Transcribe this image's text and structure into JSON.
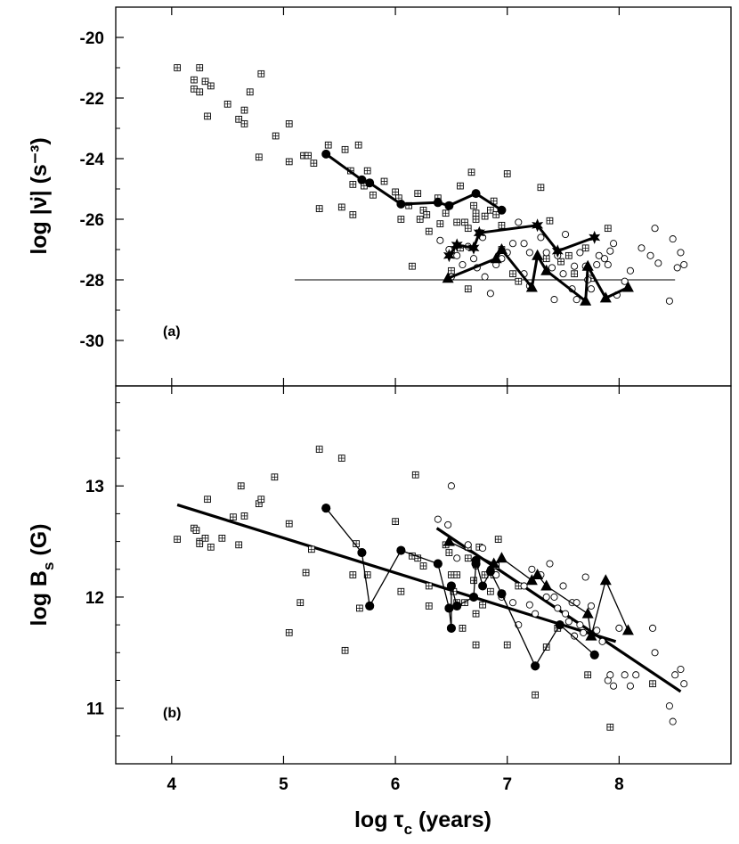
{
  "chart_data": [
    {
      "type": "scatter",
      "panel_label": "(a)",
      "ylabel": "log |ν̈| (s⁻³)",
      "xlim": [
        3.5,
        9.0
      ],
      "ylim": [
        -31.5,
        -19.0
      ],
      "yticks": [
        -30,
        -28,
        -26,
        -24,
        -22,
        -20
      ],
      "ytick_labels": [
        "-30",
        "-28",
        "-26",
        "-24",
        "-22",
        "-20"
      ],
      "reference_line": {
        "x": [
          5.1,
          8.5
        ],
        "y": -28.0
      },
      "scatter": {
        "boxed": [
          [
            4.05,
            -21.0
          ],
          [
            4.2,
            -21.4
          ],
          [
            4.2,
            -21.7
          ],
          [
            4.25,
            -21.0
          ],
          [
            4.25,
            -21.8
          ],
          [
            4.3,
            -21.45
          ],
          [
            4.32,
            -22.6
          ],
          [
            4.35,
            -21.6
          ],
          [
            4.5,
            -22.2
          ],
          [
            4.6,
            -22.7
          ],
          [
            4.65,
            -22.4
          ],
          [
            4.65,
            -22.85
          ],
          [
            4.7,
            -21.8
          ],
          [
            4.78,
            -23.95
          ],
          [
            4.8,
            -21.2
          ],
          [
            4.93,
            -23.25
          ],
          [
            5.05,
            -22.85
          ],
          [
            5.05,
            -24.1
          ],
          [
            5.18,
            -23.9
          ],
          [
            5.22,
            -23.9
          ],
          [
            5.27,
            -24.15
          ],
          [
            5.32,
            -25.65
          ],
          [
            5.4,
            -23.55
          ],
          [
            5.52,
            -25.6
          ],
          [
            5.55,
            -23.7
          ],
          [
            5.6,
            -24.4
          ],
          [
            5.62,
            -24.85
          ],
          [
            5.62,
            -25.85
          ],
          [
            5.67,
            -23.55
          ],
          [
            5.72,
            -24.9
          ],
          [
            5.75,
            -24.4
          ],
          [
            5.8,
            -25.2
          ],
          [
            5.9,
            -24.75
          ],
          [
            6.0,
            -25.1
          ],
          [
            6.03,
            -25.3
          ],
          [
            6.05,
            -26.0
          ],
          [
            6.12,
            -25.55
          ],
          [
            6.15,
            -27.55
          ],
          [
            6.2,
            -25.15
          ],
          [
            6.22,
            -26.0
          ],
          [
            6.25,
            -25.7
          ],
          [
            6.28,
            -25.85
          ],
          [
            6.3,
            -26.4
          ],
          [
            6.38,
            -25.3
          ],
          [
            6.4,
            -26.15
          ],
          [
            6.45,
            -25.8
          ],
          [
            6.48,
            -25.55
          ],
          [
            6.5,
            -27.0
          ],
          [
            6.5,
            -27.7
          ],
          [
            6.55,
            -26.1
          ],
          [
            6.58,
            -24.9
          ],
          [
            6.62,
            -26.1
          ],
          [
            6.65,
            -26.3
          ],
          [
            6.65,
            -28.3
          ],
          [
            6.68,
            -24.45
          ],
          [
            6.7,
            -25.55
          ],
          [
            6.72,
            -26.0
          ],
          [
            6.72,
            -25.8
          ],
          [
            6.75,
            -26.45
          ],
          [
            6.8,
            -25.9
          ],
          [
            6.85,
            -25.7
          ],
          [
            6.88,
            -25.4
          ],
          [
            6.9,
            -25.85
          ],
          [
            6.95,
            -27.0
          ],
          [
            7.0,
            -24.5
          ],
          [
            7.05,
            -27.8
          ],
          [
            7.1,
            -28.05
          ],
          [
            7.3,
            -24.95
          ],
          [
            7.35,
            -27.3
          ],
          [
            7.38,
            -26.05
          ],
          [
            7.48,
            -27.4
          ],
          [
            7.55,
            -27.2
          ],
          [
            7.6,
            -27.8
          ],
          [
            7.7,
            -26.95
          ],
          [
            7.75,
            -27.95
          ],
          [
            7.9,
            -26.3
          ],
          [
            6.95,
            -26.2
          ],
          [
            6.58,
            -26.95
          ]
        ],
        "open": [
          [
            6.4,
            -26.7
          ],
          [
            6.48,
            -27.0
          ],
          [
            6.5,
            -27.9
          ],
          [
            6.55,
            -27.2
          ],
          [
            6.6,
            -27.5
          ],
          [
            6.65,
            -26.9
          ],
          [
            6.7,
            -27.3
          ],
          [
            6.73,
            -27.6
          ],
          [
            6.78,
            -26.6
          ],
          [
            6.8,
            -27.9
          ],
          [
            6.85,
            -28.45
          ],
          [
            6.9,
            -27.5
          ],
          [
            6.95,
            -27.3
          ],
          [
            7.0,
            -27.1
          ],
          [
            7.05,
            -26.8
          ],
          [
            7.1,
            -26.1
          ],
          [
            7.15,
            -26.8
          ],
          [
            7.15,
            -27.8
          ],
          [
            7.2,
            -27.1
          ],
          [
            7.2,
            -28.2
          ],
          [
            7.3,
            -26.6
          ],
          [
            7.35,
            -27.1
          ],
          [
            7.4,
            -27.6
          ],
          [
            7.42,
            -28.65
          ],
          [
            7.45,
            -27.2
          ],
          [
            7.5,
            -27.8
          ],
          [
            7.52,
            -26.5
          ],
          [
            7.58,
            -28.3
          ],
          [
            7.6,
            -27.55
          ],
          [
            7.62,
            -28.65
          ],
          [
            7.65,
            -27.1
          ],
          [
            7.7,
            -27.55
          ],
          [
            7.72,
            -28.0
          ],
          [
            7.75,
            -28.3
          ],
          [
            7.8,
            -27.5
          ],
          [
            7.82,
            -27.2
          ],
          [
            7.87,
            -27.3
          ],
          [
            7.9,
            -27.5
          ],
          [
            7.92,
            -27.05
          ],
          [
            7.95,
            -26.8
          ],
          [
            7.98,
            -28.5
          ],
          [
            8.05,
            -28.05
          ],
          [
            8.1,
            -27.7
          ],
          [
            8.2,
            -26.95
          ],
          [
            8.28,
            -27.2
          ],
          [
            8.32,
            -26.3
          ],
          [
            8.35,
            -27.45
          ],
          [
            8.45,
            -28.7
          ],
          [
            8.48,
            -26.65
          ],
          [
            8.52,
            -27.6
          ],
          [
            8.55,
            -27.1
          ],
          [
            8.58,
            -27.5
          ]
        ]
      },
      "series": [
        {
          "marker": "filled-circle",
          "x": [
            5.38,
            5.7,
            5.77,
            6.05,
            6.38,
            6.48,
            6.72,
            6.95
          ],
          "y": [
            -23.85,
            -24.7,
            -24.8,
            -25.5,
            -25.45,
            -25.55,
            -25.15,
            -25.7
          ]
        },
        {
          "marker": "star",
          "x": [
            6.48,
            6.55,
            6.7,
            6.75,
            7.27,
            7.45,
            7.78
          ],
          "y": [
            -27.2,
            -26.85,
            -26.95,
            -26.45,
            -26.2,
            -27.05,
            -26.6
          ]
        },
        {
          "marker": "filled-triangle",
          "x": [
            6.47,
            6.9,
            6.95,
            7.22,
            7.27,
            7.35,
            7.7,
            7.72,
            7.88,
            8.08
          ],
          "y": [
            -27.95,
            -27.3,
            -27.0,
            -28.25,
            -27.2,
            -27.7,
            -28.7,
            -27.55,
            -28.6,
            -28.25
          ]
        }
      ]
    },
    {
      "type": "scatter",
      "panel_label": "(b)",
      "ylabel": "log B",
      "ylabel_sub": "s",
      "ylabel_unit": " (G)",
      "xlabel": "log τ",
      "xlabel_sub": "c",
      "xlabel_unit": " (years)",
      "xlim": [
        3.5,
        9.0
      ],
      "ylim": [
        10.5,
        13.9
      ],
      "xticks": [
        4,
        5,
        6,
        7,
        8
      ],
      "xtick_labels": [
        "4",
        "5",
        "6",
        "7",
        "8"
      ],
      "yticks": [
        11,
        12,
        13
      ],
      "ytick_labels": [
        "11",
        "12",
        "13"
      ],
      "fit_lines": [
        {
          "x": [
            4.05,
            7.97
          ],
          "y": [
            12.83,
            11.6
          ]
        },
        {
          "x": [
            6.37,
            8.55
          ],
          "y": [
            12.62,
            11.15
          ]
        }
      ],
      "scatter": {
        "boxed": [
          [
            4.05,
            12.52
          ],
          [
            4.2,
            12.62
          ],
          [
            4.22,
            12.6
          ],
          [
            4.25,
            12.5
          ],
          [
            4.25,
            12.48
          ],
          [
            4.3,
            12.53
          ],
          [
            4.32,
            12.88
          ],
          [
            4.35,
            12.45
          ],
          [
            4.45,
            12.53
          ],
          [
            4.55,
            12.72
          ],
          [
            4.6,
            12.47
          ],
          [
            4.62,
            13.0
          ],
          [
            4.65,
            12.73
          ],
          [
            4.78,
            12.84
          ],
          [
            4.8,
            12.88
          ],
          [
            4.92,
            13.08
          ],
          [
            5.05,
            11.68
          ],
          [
            5.05,
            12.66
          ],
          [
            5.15,
            11.95
          ],
          [
            5.2,
            12.22
          ],
          [
            5.25,
            12.43
          ],
          [
            5.32,
            13.33
          ],
          [
            5.52,
            13.25
          ],
          [
            5.55,
            11.52
          ],
          [
            5.62,
            12.2
          ],
          [
            5.65,
            12.48
          ],
          [
            5.68,
            11.9
          ],
          [
            5.75,
            12.2
          ],
          [
            6.0,
            12.68
          ],
          [
            6.05,
            12.05
          ],
          [
            6.15,
            12.37
          ],
          [
            6.18,
            13.1
          ],
          [
            6.2,
            12.35
          ],
          [
            6.25,
            12.28
          ],
          [
            6.3,
            12.1
          ],
          [
            6.3,
            11.92
          ],
          [
            6.45,
            12.47
          ],
          [
            6.48,
            12.4
          ],
          [
            6.5,
            12.2
          ],
          [
            6.52,
            12.05
          ],
          [
            6.55,
            12.2
          ],
          [
            6.55,
            11.95
          ],
          [
            6.6,
            11.72
          ],
          [
            6.62,
            11.95
          ],
          [
            6.65,
            12.35
          ],
          [
            6.65,
            12.45
          ],
          [
            6.7,
            12.15
          ],
          [
            6.72,
            11.85
          ],
          [
            6.72,
            11.57
          ],
          [
            6.75,
            12.45
          ],
          [
            6.78,
            11.93
          ],
          [
            6.8,
            12.2
          ],
          [
            6.85,
            12.05
          ],
          [
            6.88,
            12.2
          ],
          [
            6.9,
            12.28
          ],
          [
            6.92,
            12.52
          ],
          [
            7.0,
            11.57
          ],
          [
            7.1,
            12.1
          ],
          [
            7.25,
            11.12
          ],
          [
            7.35,
            11.55
          ],
          [
            7.45,
            11.72
          ],
          [
            7.72,
            11.3
          ],
          [
            7.92,
            10.83
          ],
          [
            8.3,
            11.22
          ]
        ],
        "open": [
          [
            6.38,
            12.7
          ],
          [
            6.47,
            12.65
          ],
          [
            6.5,
            13.0
          ],
          [
            6.55,
            12.35
          ],
          [
            6.65,
            12.47
          ],
          [
            6.72,
            12.28
          ],
          [
            6.78,
            12.44
          ],
          [
            6.85,
            12.25
          ],
          [
            6.9,
            12.2
          ],
          [
            6.95,
            12.0
          ],
          [
            7.05,
            11.95
          ],
          [
            7.1,
            11.75
          ],
          [
            7.15,
            12.1
          ],
          [
            7.2,
            11.93
          ],
          [
            7.22,
            12.25
          ],
          [
            7.25,
            11.85
          ],
          [
            7.3,
            12.2
          ],
          [
            7.35,
            12.0
          ],
          [
            7.38,
            12.3
          ],
          [
            7.42,
            12.0
          ],
          [
            7.45,
            11.9
          ],
          [
            7.5,
            12.1
          ],
          [
            7.52,
            11.85
          ],
          [
            7.55,
            11.78
          ],
          [
            7.58,
            11.95
          ],
          [
            7.6,
            11.65
          ],
          [
            7.62,
            11.95
          ],
          [
            7.65,
            11.75
          ],
          [
            7.68,
            11.68
          ],
          [
            7.7,
            12.18
          ],
          [
            7.75,
            11.92
          ],
          [
            7.8,
            11.7
          ],
          [
            7.85,
            11.6
          ],
          [
            7.9,
            11.25
          ],
          [
            7.92,
            11.3
          ],
          [
            7.95,
            11.2
          ],
          [
            8.0,
            11.72
          ],
          [
            8.05,
            11.3
          ],
          [
            8.1,
            11.2
          ],
          [
            8.15,
            11.3
          ],
          [
            8.3,
            11.72
          ],
          [
            8.32,
            11.5
          ],
          [
            8.45,
            11.02
          ],
          [
            8.48,
            10.88
          ],
          [
            8.5,
            11.3
          ],
          [
            8.55,
            11.35
          ],
          [
            8.58,
            11.22
          ]
        ],
        "filled_circle": [
          [
            5.38,
            12.8
          ],
          [
            5.7,
            12.4
          ],
          [
            5.77,
            11.92
          ],
          [
            6.05,
            12.42
          ],
          [
            6.38,
            12.3
          ],
          [
            6.48,
            11.9
          ],
          [
            6.5,
            11.72
          ],
          [
            6.5,
            12.1
          ],
          [
            6.55,
            11.92
          ],
          [
            6.7,
            12.0
          ],
          [
            6.72,
            12.3
          ],
          [
            6.95,
            12.03
          ],
          [
            7.25,
            11.38
          ],
          [
            7.47,
            11.75
          ],
          [
            7.78,
            11.48
          ]
        ]
      },
      "series": [
        {
          "marker": "filled-circle",
          "x": [
            5.38,
            5.7,
            5.77,
            6.05,
            6.38,
            6.48,
            6.5,
            6.5,
            6.55,
            6.7,
            6.72,
            6.72,
            6.78,
            6.85,
            6.95,
            7.25,
            7.47,
            7.78
          ],
          "y": [
            12.8,
            12.4,
            11.92,
            12.42,
            12.3,
            11.9,
            11.72,
            12.1,
            11.92,
            12.0,
            12.3,
            12.33,
            12.1,
            12.23,
            12.03,
            11.38,
            11.75,
            11.48
          ]
        },
        {
          "marker": "filled-triangle",
          "x": [
            6.48,
            6.88,
            6.95,
            7.22,
            7.27,
            7.35,
            7.72,
            7.75,
            7.88,
            8.08
          ],
          "y": [
            12.5,
            12.3,
            12.35,
            12.15,
            12.2,
            12.1,
            11.85,
            11.65,
            12.15,
            11.7
          ]
        }
      ]
    }
  ]
}
